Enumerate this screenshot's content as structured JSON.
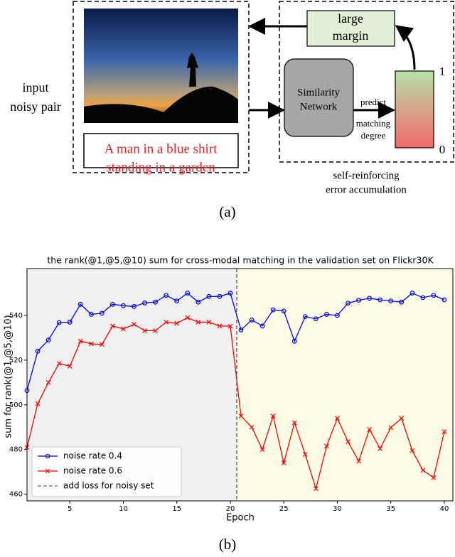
{
  "diagram": {
    "input_label": [
      "input",
      "noisy pair"
    ],
    "caption": [
      "A man in a blue shirt",
      "standing in a garden"
    ],
    "network": [
      "Similarity",
      "Network"
    ],
    "predict": [
      "predict",
      "matching",
      "degree"
    ],
    "margin": [
      "large",
      "margin"
    ],
    "scale_high": "1",
    "scale_low": "0",
    "loop_label": [
      "self-reinforcing",
      "error accumulation"
    ],
    "panel_label": "(a)"
  },
  "chart_data": {
    "type": "line",
    "title": "the rank(@1,@5,@10) sum for cross-modal matching in the validation set on Flickr30K",
    "x_label": "Epoch",
    "y_label": "sum for rank(@1,@5,@10)",
    "panel_label": "(b)",
    "x": [
      1,
      2,
      3,
      4,
      5,
      6,
      7,
      8,
      9,
      10,
      11,
      12,
      13,
      14,
      15,
      16,
      17,
      18,
      19,
      20,
      21,
      22,
      23,
      24,
      25,
      26,
      27,
      28,
      29,
      30,
      31,
      32,
      33,
      34,
      35,
      36,
      37,
      38,
      39,
      40
    ],
    "series": [
      {
        "name": "noise rate 0.4",
        "color": "#0000ff",
        "marker": "circle",
        "values": [
          506.4,
          524,
          529,
          536.8,
          537,
          545,
          540.5,
          541,
          545,
          544.4,
          544,
          545.6,
          546,
          549,
          546.5,
          550,
          546,
          548.5,
          548.5,
          550,
          533.5,
          538,
          535.3,
          542.5,
          542,
          528.5,
          539.5,
          538.5,
          540.5,
          540,
          545.5,
          546.8,
          547.7,
          547,
          546.5,
          546,
          550,
          548,
          549,
          547
        ]
      },
      {
        "name": "noise rate 0.6",
        "color": "#ff0000",
        "marker": "x",
        "values": [
          481,
          500.5,
          510,
          518.5,
          517.3,
          528.5,
          527.3,
          527,
          535.3,
          534,
          536,
          533.2,
          533.2,
          537,
          536.5,
          539,
          537,
          537,
          535.3,
          535.2,
          495,
          490,
          480,
          495,
          474,
          492,
          477.8,
          462.5,
          481.5,
          494,
          483.5,
          474.8,
          489,
          480.4,
          489.8,
          494,
          479.5,
          470.7,
          467.4,
          488
        ]
      }
    ],
    "vline": {
      "name": "add loss for noisy set",
      "x": 20.6,
      "color": "#444444"
    },
    "xlim": [
      1,
      40.8
    ],
    "ylim": [
      457,
      561
    ],
    "xticks": [
      5,
      10,
      15,
      20,
      25,
      30,
      35,
      40
    ],
    "yticks": [
      460,
      480,
      500,
      520,
      540
    ],
    "legend": "lower left"
  }
}
